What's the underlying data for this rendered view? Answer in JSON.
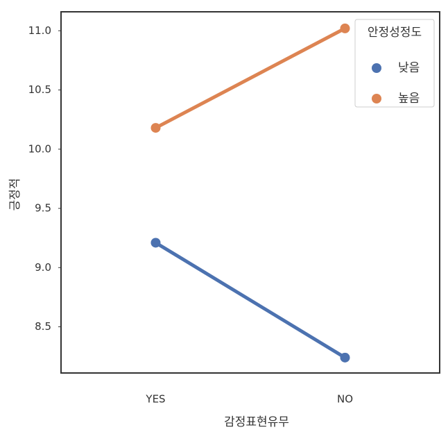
{
  "chart_data": {
    "type": "pointplot",
    "x_label": "감정표현유무",
    "y_label": "긍정적",
    "categories": [
      "YES",
      "NO"
    ],
    "series": [
      {
        "name": "낮음",
        "color": "#4c72b0",
        "values": [
          9.21,
          8.24
        ]
      },
      {
        "name": "높음",
        "color": "#dd8452",
        "values": [
          10.18,
          11.02
        ]
      }
    ],
    "ylim": [
      8.11,
      11.16
    ],
    "yticks": [
      {
        "value": 8.5,
        "label": "8.5"
      },
      {
        "value": 9,
        "label": "9.0"
      },
      {
        "value": 9.5,
        "label": "9.5"
      },
      {
        "value": 10,
        "label": "10.0"
      },
      {
        "value": 10.5,
        "label": "10.5"
      },
      {
        "value": 11,
        "label": "11.0"
      }
    ],
    "legend_title": "안정성정도",
    "legend": "upper right",
    "grid": false
  }
}
